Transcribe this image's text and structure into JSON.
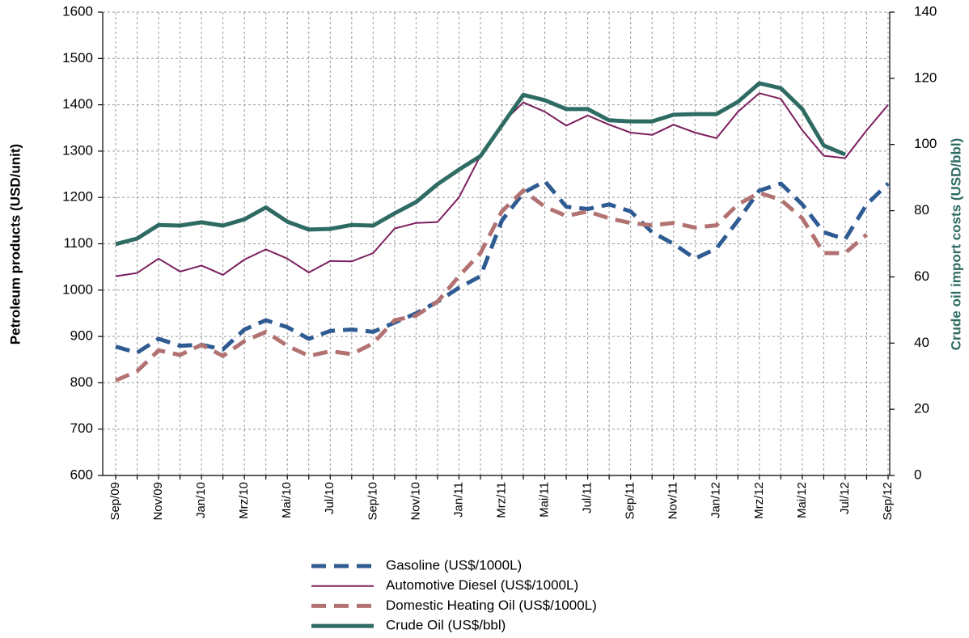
{
  "chart_data": {
    "type": "line",
    "categories": [
      "Sep/09",
      null,
      "Nov/09",
      null,
      "Jan/10",
      null,
      "Mrz/10",
      null,
      "Mai/10",
      null,
      "Jul/10",
      null,
      "Sep/10",
      null,
      "Nov/10",
      null,
      "Jan/11",
      null,
      "Mrz/11",
      null,
      "Mai/11",
      null,
      "Jul/11",
      null,
      "Sep/11",
      null,
      "Nov/11",
      null,
      "Jan/12",
      null,
      "Mrz/12",
      null,
      "Mai/12",
      null,
      "Jul/12",
      null,
      "Sep/12"
    ],
    "y_label": "Petroleum products (USD/unit)",
    "y2_label": "Crude oil import costs (USD/bbl)",
    "ylim": [
      600,
      1600
    ],
    "yticks": [
      600,
      700,
      800,
      900,
      1000,
      1100,
      1200,
      1300,
      1400,
      1500,
      1600
    ],
    "y2lim": [
      0,
      140
    ],
    "y2ticks": [
      0,
      20,
      40,
      60,
      80,
      100,
      120,
      140
    ],
    "grid": true,
    "legend": "bottom",
    "series": [
      {
        "name": "Gasoline (US$/1000L)",
        "color": "#2f5b93",
        "dash": true,
        "values": [
          878,
          865,
          895,
          880,
          882,
          872,
          915,
          935,
          920,
          895,
          912,
          915,
          910,
          930,
          950,
          975,
          1005,
          1030,
          1150,
          1210,
          1235,
          1180,
          1175,
          1185,
          1170,
          1125,
          1100,
          1068,
          1090,
          1150,
          1215,
          1230,
          1185,
          1125,
          1110,
          1185,
          1230
        ]
      },
      {
        "name": "Automotive Diesel (US$/1000L)",
        "color": "#7b1f5c",
        "dash": false,
        "values": [
          1030,
          1037,
          1068,
          1040,
          1053,
          1033,
          1066,
          1088,
          1068,
          1038,
          1063,
          1062,
          1080,
          1133,
          1145,
          1147,
          1200,
          1290,
          1360,
          1405,
          1385,
          1355,
          1377,
          1357,
          1340,
          1335,
          1357,
          1340,
          1328,
          1385,
          1425,
          1413,
          1345,
          1290,
          1285,
          1345,
          1400
        ]
      },
      {
        "name": "Domestic Heating Oil (US$/1000L)",
        "color": "#b27272",
        "dash": true,
        "values": [
          805,
          825,
          870,
          860,
          882,
          858,
          890,
          910,
          880,
          858,
          868,
          862,
          885,
          935,
          945,
          975,
          1030,
          1080,
          1170,
          1215,
          1180,
          1160,
          1170,
          1155,
          1145,
          1140,
          1145,
          1135,
          1140,
          1185,
          1210,
          1195,
          1155,
          1080,
          1080,
          1120,
          null
        ]
      },
      {
        "name": "Crude Oil (US$/bbl)",
        "color": "#2e6b63",
        "dash": false,
        "axis": "y2",
        "values": [
          69.9,
          71.6,
          75.7,
          75.5,
          76.5,
          75.5,
          77.4,
          81,
          76.7,
          74.3,
          74.5,
          75.7,
          75.5,
          79.2,
          82.6,
          88,
          92.4,
          96.5,
          105.8,
          115,
          113.4,
          110.7,
          110.7,
          107.3,
          107,
          107,
          109,
          109.2,
          109.2,
          112.9,
          118.5,
          117,
          110.7,
          99.7,
          97,
          null,
          null
        ]
      }
    ]
  }
}
